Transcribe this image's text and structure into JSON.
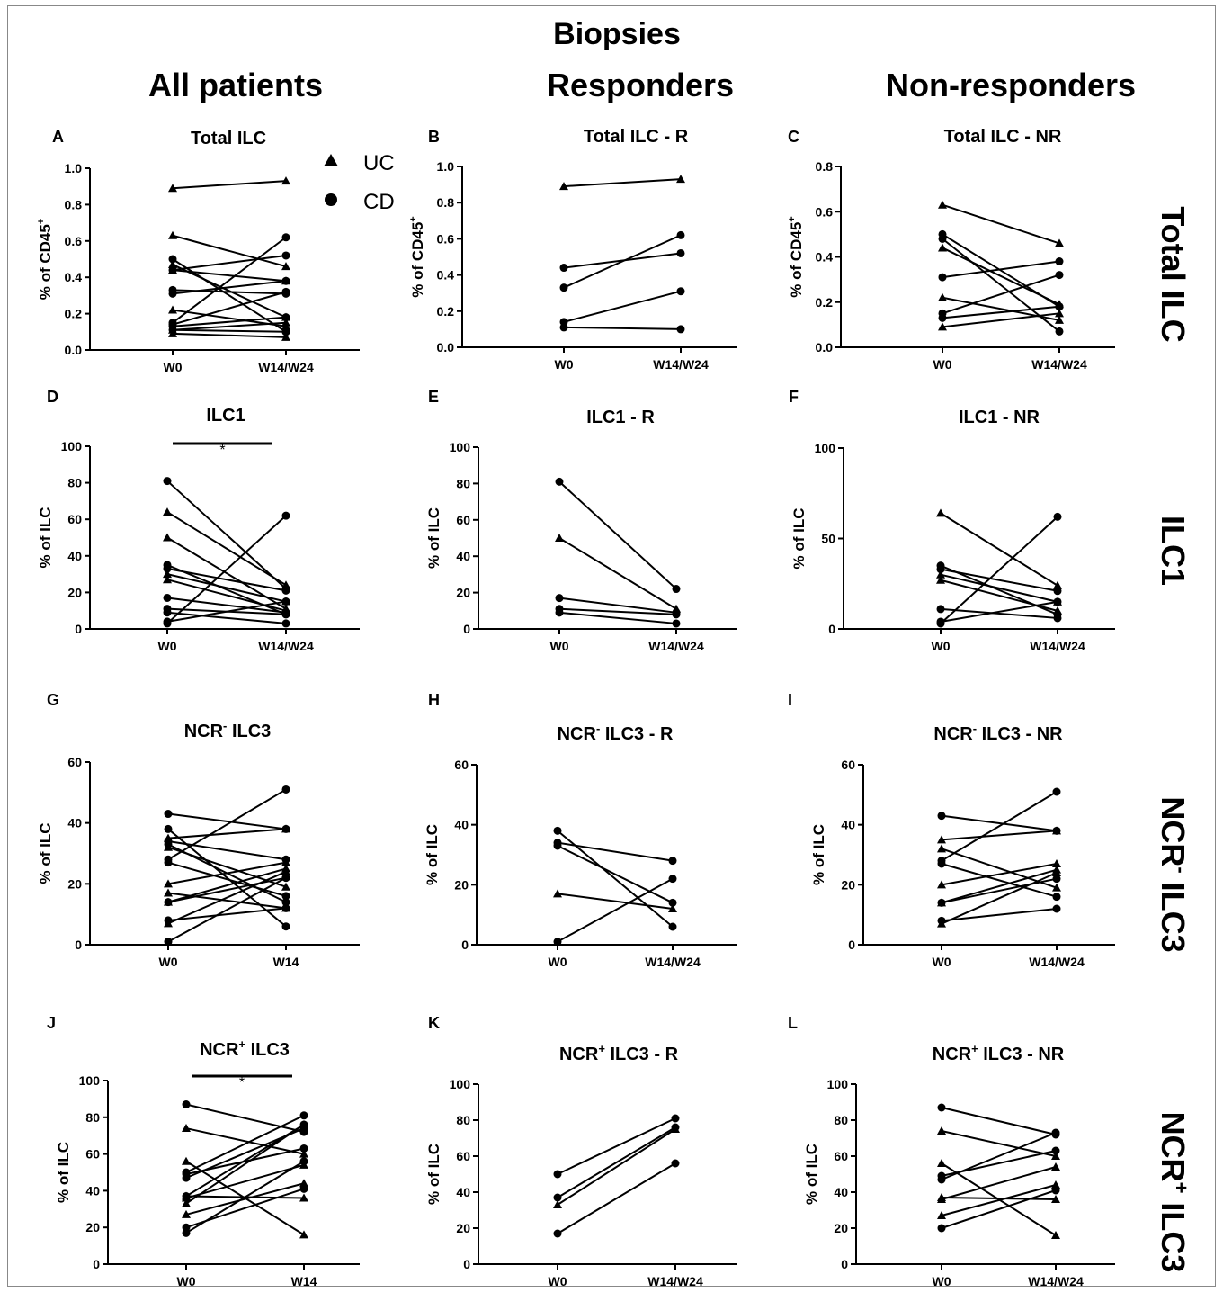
{
  "figure": {
    "title": "Biopsies",
    "columns": [
      "All patients",
      "Responders",
      "Non-responders"
    ],
    "row_labels": [
      "Total ILC",
      "ILC1",
      "NCR- ILC3",
      "NCR+ ILC3"
    ],
    "legend": [
      {
        "marker": "triangle",
        "label": "UC"
      },
      {
        "marker": "circle",
        "label": "CD"
      }
    ]
  },
  "chart_data": [
    {
      "panel": "A",
      "type": "line",
      "title": "Total ILC",
      "ylabel": "% of CD45+",
      "ylim": [
        0,
        1.0
      ],
      "yticks": [
        0.0,
        0.2,
        0.4,
        0.6,
        0.8,
        1.0
      ],
      "categories": [
        "W0",
        "W14/W24"
      ],
      "series": [
        {
          "m": "t",
          "values": [
            0.89,
            0.93
          ]
        },
        {
          "m": "t",
          "values": [
            0.63,
            0.46
          ]
        },
        {
          "m": "t",
          "values": [
            0.47,
            0.18
          ]
        },
        {
          "m": "t",
          "values": [
            0.44,
            0.38
          ]
        },
        {
          "m": "t",
          "values": [
            0.22,
            0.13
          ]
        },
        {
          "m": "t",
          "values": [
            0.09,
            0.07
          ]
        },
        {
          "m": "t",
          "values": [
            0.11,
            0.15
          ]
        },
        {
          "m": "c",
          "values": [
            0.5,
            0.1
          ]
        },
        {
          "m": "c",
          "values": [
            0.44,
            0.52
          ]
        },
        {
          "m": "c",
          "values": [
            0.33,
            0.31
          ]
        },
        {
          "m": "c",
          "values": [
            0.31,
            0.38
          ]
        },
        {
          "m": "c",
          "values": [
            0.15,
            0.62
          ]
        },
        {
          "m": "c",
          "values": [
            0.14,
            0.32
          ]
        },
        {
          "m": "c",
          "values": [
            0.13,
            0.18
          ]
        },
        {
          "m": "c",
          "values": [
            0.11,
            0.1
          ]
        }
      ]
    },
    {
      "panel": "B",
      "type": "line",
      "title": "Total ILC - R",
      "ylabel": "% of CD45+",
      "ylim": [
        0,
        1.0
      ],
      "yticks": [
        0.0,
        0.2,
        0.4,
        0.6,
        0.8,
        1.0
      ],
      "categories": [
        "W0",
        "W14/W24"
      ],
      "series": [
        {
          "m": "t",
          "values": [
            0.89,
            0.93
          ]
        },
        {
          "m": "c",
          "values": [
            0.44,
            0.52
          ]
        },
        {
          "m": "c",
          "values": [
            0.33,
            0.62
          ]
        },
        {
          "m": "c",
          "values": [
            0.14,
            0.31
          ]
        },
        {
          "m": "c",
          "values": [
            0.11,
            0.1
          ]
        }
      ]
    },
    {
      "panel": "C",
      "type": "line",
      "title": "Total ILC - NR",
      "ylabel": "% of CD45+",
      "ylim": [
        0,
        0.8
      ],
      "yticks": [
        0.0,
        0.2,
        0.4,
        0.6,
        0.8
      ],
      "categories": [
        "W0",
        "W14/W24"
      ],
      "series": [
        {
          "m": "t",
          "values": [
            0.63,
            0.46
          ]
        },
        {
          "m": "t",
          "values": [
            0.44,
            0.19
          ]
        },
        {
          "m": "t",
          "values": [
            0.22,
            0.12
          ]
        },
        {
          "m": "t",
          "values": [
            0.09,
            0.15
          ]
        },
        {
          "m": "c",
          "values": [
            0.5,
            0.18
          ]
        },
        {
          "m": "c",
          "values": [
            0.48,
            0.07
          ]
        },
        {
          "m": "c",
          "values": [
            0.31,
            0.38
          ]
        },
        {
          "m": "c",
          "values": [
            0.15,
            0.32
          ]
        },
        {
          "m": "c",
          "values": [
            0.13,
            0.18
          ]
        }
      ]
    },
    {
      "panel": "D",
      "type": "line",
      "title": "ILC1",
      "sig": "*",
      "ylabel": "% of ILC",
      "ylim": [
        0,
        100
      ],
      "yticks": [
        0,
        20,
        40,
        60,
        80,
        100
      ],
      "categories": [
        "W0",
        "W14/W24"
      ],
      "series": [
        {
          "m": "c",
          "values": [
            81,
            22
          ]
        },
        {
          "m": "t",
          "values": [
            64,
            24
          ]
        },
        {
          "m": "t",
          "values": [
            50,
            11
          ]
        },
        {
          "m": "c",
          "values": [
            35,
            8
          ]
        },
        {
          "m": "c",
          "values": [
            33,
            21
          ]
        },
        {
          "m": "t",
          "values": [
            30,
            15
          ]
        },
        {
          "m": "t",
          "values": [
            27,
            10
          ]
        },
        {
          "m": "c",
          "values": [
            17,
            9
          ]
        },
        {
          "m": "c",
          "values": [
            11,
            8
          ]
        },
        {
          "m": "c",
          "values": [
            9,
            3
          ]
        },
        {
          "m": "c",
          "values": [
            4,
            15
          ]
        },
        {
          "m": "c",
          "values": [
            3,
            62
          ]
        }
      ]
    },
    {
      "panel": "E",
      "type": "line",
      "title": "ILC1 - R",
      "ylabel": "% of ILC",
      "ylim": [
        0,
        100
      ],
      "yticks": [
        0,
        20,
        40,
        60,
        80,
        100
      ],
      "categories": [
        "W0",
        "W14/W24"
      ],
      "series": [
        {
          "m": "c",
          "values": [
            81,
            22
          ]
        },
        {
          "m": "t",
          "values": [
            50,
            11
          ]
        },
        {
          "m": "c",
          "values": [
            17,
            9
          ]
        },
        {
          "m": "c",
          "values": [
            11,
            8
          ]
        },
        {
          "m": "c",
          "values": [
            9,
            3
          ]
        }
      ]
    },
    {
      "panel": "F",
      "type": "line",
      "title": "ILC1 - NR",
      "ylabel": "% of ILC",
      "ylim": [
        0,
        100
      ],
      "yticks": [
        0,
        50,
        100
      ],
      "categories": [
        "W0",
        "W14/W24"
      ],
      "series": [
        {
          "m": "t",
          "values": [
            64,
            24
          ]
        },
        {
          "m": "c",
          "values": [
            35,
            8
          ]
        },
        {
          "m": "c",
          "values": [
            33,
            21
          ]
        },
        {
          "m": "t",
          "values": [
            30,
            15
          ]
        },
        {
          "m": "t",
          "values": [
            27,
            10
          ]
        },
        {
          "m": "c",
          "values": [
            11,
            6
          ]
        },
        {
          "m": "c",
          "values": [
            4,
            15
          ]
        },
        {
          "m": "c",
          "values": [
            3,
            62
          ]
        }
      ]
    },
    {
      "panel": "G",
      "type": "line",
      "title": "NCR- ILC3",
      "ylabel": "% of ILC",
      "ylim": [
        0,
        60
      ],
      "yticks": [
        0,
        20,
        40,
        60
      ],
      "categories": [
        "W0",
        "W14"
      ],
      "series": [
        {
          "m": "c",
          "values": [
            43,
            38
          ]
        },
        {
          "m": "c",
          "values": [
            38,
            6
          ]
        },
        {
          "m": "t",
          "values": [
            35,
            38
          ]
        },
        {
          "m": "c",
          "values": [
            34,
            28
          ]
        },
        {
          "m": "c",
          "values": [
            33,
            14
          ]
        },
        {
          "m": "t",
          "values": [
            32,
            19
          ]
        },
        {
          "m": "c",
          "values": [
            28,
            51
          ]
        },
        {
          "m": "c",
          "values": [
            27,
            16
          ]
        },
        {
          "m": "t",
          "values": [
            20,
            27
          ]
        },
        {
          "m": "t",
          "values": [
            17,
            12
          ]
        },
        {
          "m": "c",
          "values": [
            14,
            22
          ]
        },
        {
          "m": "t",
          "values": [
            14,
            25
          ]
        },
        {
          "m": "c",
          "values": [
            8,
            12
          ]
        },
        {
          "m": "t",
          "values": [
            7,
            24
          ]
        },
        {
          "m": "c",
          "values": [
            1,
            22
          ]
        }
      ]
    },
    {
      "panel": "H",
      "type": "line",
      "title": "NCR- ILC3 - R",
      "ylabel": "% of ILC",
      "ylim": [
        0,
        60
      ],
      "yticks": [
        0,
        20,
        40,
        60
      ],
      "categories": [
        "W0",
        "W14/W24"
      ],
      "series": [
        {
          "m": "c",
          "values": [
            38,
            6
          ]
        },
        {
          "m": "c",
          "values": [
            34,
            28
          ]
        },
        {
          "m": "c",
          "values": [
            33,
            14
          ]
        },
        {
          "m": "t",
          "values": [
            17,
            12
          ]
        },
        {
          "m": "c",
          "values": [
            1,
            22
          ]
        }
      ]
    },
    {
      "panel": "I",
      "type": "line",
      "title": "NCR- ILC3 - NR",
      "ylabel": "% of ILC",
      "ylim": [
        0,
        60
      ],
      "yticks": [
        0,
        20,
        40,
        60
      ],
      "categories": [
        "W0",
        "W14/W24"
      ],
      "series": [
        {
          "m": "c",
          "values": [
            43,
            38
          ]
        },
        {
          "m": "t",
          "values": [
            35,
            38
          ]
        },
        {
          "m": "t",
          "values": [
            32,
            19
          ]
        },
        {
          "m": "c",
          "values": [
            28,
            51
          ]
        },
        {
          "m": "c",
          "values": [
            27,
            16
          ]
        },
        {
          "m": "t",
          "values": [
            20,
            27
          ]
        },
        {
          "m": "t",
          "values": [
            14,
            25
          ]
        },
        {
          "m": "c",
          "values": [
            14,
            22
          ]
        },
        {
          "m": "c",
          "values": [
            8,
            12
          ]
        },
        {
          "m": "t",
          "values": [
            7,
            24
          ]
        }
      ]
    },
    {
      "panel": "J",
      "type": "line",
      "title": "NCR+ ILC3",
      "sig": "*",
      "ylabel": "% of ILC",
      "ylim": [
        0,
        100
      ],
      "yticks": [
        0,
        20,
        40,
        60,
        80,
        100
      ],
      "categories": [
        "W0",
        "W14"
      ],
      "series": [
        {
          "m": "c",
          "values": [
            87,
            72
          ]
        },
        {
          "m": "t",
          "values": [
            74,
            60
          ]
        },
        {
          "m": "t",
          "values": [
            56,
            16
          ]
        },
        {
          "m": "c",
          "values": [
            50,
            81
          ]
        },
        {
          "m": "c",
          "values": [
            49,
            63
          ]
        },
        {
          "m": "c",
          "values": [
            47,
            74
          ]
        },
        {
          "m": "c",
          "values": [
            37,
            76
          ]
        },
        {
          "m": "t",
          "values": [
            37,
            36
          ]
        },
        {
          "m": "t",
          "values": [
            33,
            76
          ]
        },
        {
          "m": "t",
          "values": [
            27,
            44
          ]
        },
        {
          "m": "c",
          "values": [
            20,
            41
          ]
        },
        {
          "m": "c",
          "values": [
            17,
            56
          ]
        },
        {
          "m": "t",
          "values": [
            36,
            54
          ]
        }
      ]
    },
    {
      "panel": "K",
      "type": "line",
      "title": "NCR+ ILC3 - R",
      "ylabel": "% of ILC",
      "ylim": [
        0,
        100
      ],
      "yticks": [
        0,
        20,
        40,
        60,
        80,
        100
      ],
      "categories": [
        "W0",
        "W14/W24"
      ],
      "series": [
        {
          "m": "c",
          "values": [
            50,
            81
          ]
        },
        {
          "m": "c",
          "values": [
            37,
            76
          ]
        },
        {
          "m": "t",
          "values": [
            33,
            75
          ]
        },
        {
          "m": "c",
          "values": [
            17,
            56
          ]
        }
      ]
    },
    {
      "panel": "L",
      "type": "line",
      "title": "NCR+ ILC3 - NR",
      "ylabel": "% of ILC",
      "ylim": [
        0,
        100
      ],
      "yticks": [
        0,
        20,
        40,
        60,
        80,
        100
      ],
      "categories": [
        "W0",
        "W14/W24"
      ],
      "series": [
        {
          "m": "c",
          "values": [
            87,
            72
          ]
        },
        {
          "m": "t",
          "values": [
            74,
            60
          ]
        },
        {
          "m": "t",
          "values": [
            56,
            16
          ]
        },
        {
          "m": "c",
          "values": [
            49,
            63
          ]
        },
        {
          "m": "c",
          "values": [
            47,
            73
          ]
        },
        {
          "m": "t",
          "values": [
            37,
            36
          ]
        },
        {
          "m": "t",
          "values": [
            27,
            44
          ]
        },
        {
          "m": "c",
          "values": [
            20,
            41
          ]
        },
        {
          "m": "t",
          "values": [
            36,
            54
          ]
        }
      ]
    }
  ]
}
